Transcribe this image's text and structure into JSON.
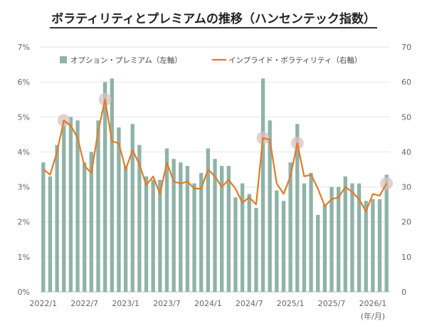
{
  "chart_data": {
    "type": "bar+line",
    "title": "ボラティリティとプレミアムの推移（ハンセンテック指数）",
    "y_left": {
      "ticks": [
        "0%",
        "1%",
        "2%",
        "3%",
        "4%",
        "5%",
        "6%",
        "7%"
      ],
      "lim": [
        0,
        7
      ],
      "unit": "%"
    },
    "y_right": {
      "ticks": [
        "0",
        "10",
        "20",
        "30",
        "40",
        "50",
        "60",
        "70"
      ],
      "lim": [
        0,
        70
      ]
    },
    "x_ticks": [
      "2022/1",
      "2022/7",
      "2023/1",
      "2023/7",
      "2024/1",
      "2024/7",
      "2025/1",
      "2025/7",
      "2026/1"
    ],
    "x_unit_label": "(年/月)",
    "series": [
      {
        "name": "オプション・プレミアム（左軸）",
        "kind": "bar",
        "axis": "left",
        "color": "#8fb3a7",
        "values": [
          3.7,
          3.3,
          4.2,
          4.9,
          5.0,
          4.9,
          3.7,
          4.0,
          4.9,
          6.0,
          6.1,
          4.7,
          3.6,
          4.8,
          4.2,
          3.3,
          3.2,
          3.2,
          4.1,
          3.8,
          3.7,
          3.6,
          3.1,
          3.4,
          4.1,
          3.8,
          3.6,
          3.6,
          2.7,
          3.1,
          2.8,
          2.4,
          6.1,
          4.9,
          2.9,
          2.6,
          3.7,
          4.8,
          3.1,
          3.4,
          2.2,
          2.5,
          3.0,
          3.0,
          3.3,
          3.1,
          3.1,
          2.6,
          2.65,
          2.65,
          3.35
        ]
      },
      {
        "name": "インプライド・ボラティリティ（右軸）",
        "kind": "line",
        "axis": "right",
        "color": "#e07b2a",
        "values": [
          35,
          33.5,
          40,
          49,
          47.5,
          44,
          36,
          34,
          46,
          55,
          43,
          42.5,
          35,
          40.5,
          36.5,
          30.5,
          33,
          28,
          37,
          31.5,
          31,
          31.5,
          29.5,
          29.5,
          35,
          33,
          30,
          32,
          29.5,
          25.5,
          27,
          25,
          44,
          43.5,
          31,
          28,
          33,
          42.5,
          33,
          33.5,
          29.5,
          24.5,
          26.5,
          27,
          30,
          28.5,
          26.5,
          23,
          28,
          27.5,
          31
        ]
      }
    ],
    "highlight_points": [
      3,
      9,
      32,
      37,
      50
    ],
    "highlight_color": "#d9c3c0"
  }
}
